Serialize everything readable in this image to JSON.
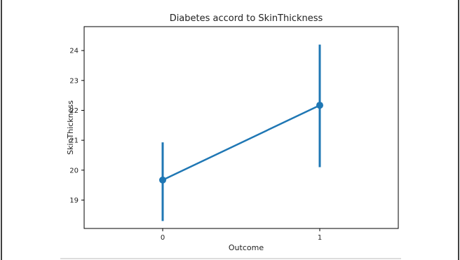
{
  "chart_data": {
    "type": "point",
    "title": "Diabetes accord to SkinThickness",
    "xlabel": "Outcome",
    "ylabel": "SkinThickness",
    "categories": [
      "0",
      "1"
    ],
    "values": [
      19.67,
      22.17
    ],
    "error_low": [
      18.3,
      20.1
    ],
    "error_high": [
      20.93,
      24.2
    ],
    "ylim": [
      18.05,
      24.8
    ],
    "yticks": [
      19,
      20,
      21,
      22,
      23,
      24
    ],
    "grid": false,
    "legend": "none",
    "color": "#1f77b4"
  }
}
